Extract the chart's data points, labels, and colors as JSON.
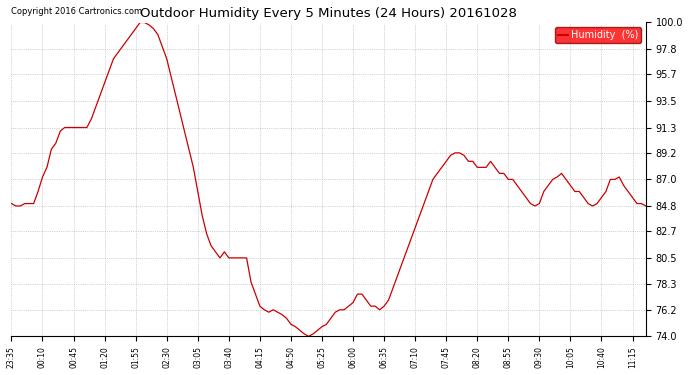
{
  "title": "Outdoor Humidity Every 5 Minutes (24 Hours) 20161028",
  "copyright": "Copyright 2016 Cartronics.com",
  "legend_label": "Humidity  (%)",
  "legend_bg": "#ff0000",
  "legend_text_color": "#ffffff",
  "line_color": "#cc0000",
  "bg_color": "#ffffff",
  "grid_color": "#aaaaaa",
  "ylim": [
    74.0,
    100.0
  ],
  "yticks": [
    74.0,
    76.2,
    78.3,
    80.5,
    82.7,
    84.8,
    87.0,
    89.2,
    91.3,
    93.5,
    95.7,
    97.8,
    100.0
  ],
  "tick_every_n": 7,
  "humidity_values": [
    85.0,
    84.8,
    84.8,
    85.0,
    85.0,
    85.0,
    86.0,
    87.2,
    88.0,
    89.5,
    90.0,
    91.0,
    91.3,
    91.3,
    91.3,
    91.3,
    91.3,
    91.3,
    92.0,
    93.0,
    94.0,
    95.0,
    96.0,
    97.0,
    97.5,
    98.0,
    98.5,
    99.0,
    99.5,
    100.0,
    100.0,
    99.8,
    99.5,
    99.0,
    98.0,
    97.0,
    95.5,
    94.0,
    92.5,
    91.0,
    89.5,
    88.0,
    86.0,
    84.0,
    82.5,
    81.5,
    81.0,
    80.5,
    81.0,
    80.5,
    80.5,
    80.5,
    80.5,
    80.5,
    78.5,
    77.5,
    76.5,
    76.2,
    76.0,
    76.2,
    76.0,
    75.8,
    75.5,
    75.0,
    74.8,
    74.5,
    74.2,
    74.0,
    74.2,
    74.5,
    74.8,
    75.0,
    75.5,
    76.0,
    76.2,
    76.2,
    76.5,
    76.8,
    77.5,
    77.5,
    77.0,
    76.5,
    76.5,
    76.2,
    76.5,
    77.0,
    78.0,
    79.0,
    80.0,
    81.0,
    82.0,
    83.0,
    84.0,
    85.0,
    86.0,
    87.0,
    87.5,
    88.0,
    88.5,
    89.0,
    89.2,
    89.2,
    89.0,
    88.5,
    88.5,
    88.0,
    88.0,
    88.0,
    88.5,
    88.0,
    87.5,
    87.5,
    87.0,
    87.0,
    86.5,
    86.0,
    85.5,
    85.0,
    84.8,
    85.0,
    86.0,
    86.5,
    87.0,
    87.2,
    87.5,
    87.0,
    86.5,
    86.0,
    86.0,
    85.5,
    85.0,
    84.8,
    85.0,
    85.5,
    86.0,
    87.0,
    87.0,
    87.2,
    86.5,
    86.0,
    85.5,
    85.0,
    85.0,
    84.8
  ]
}
